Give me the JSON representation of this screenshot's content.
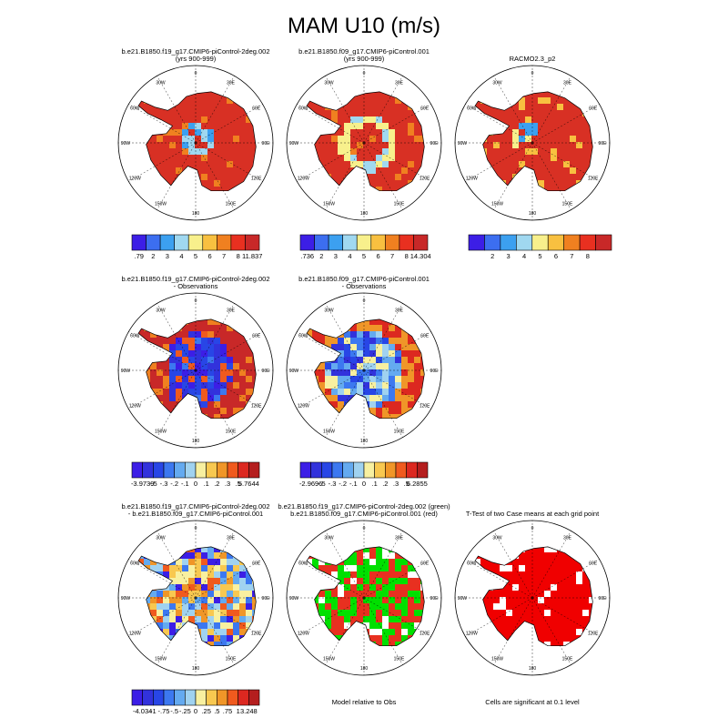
{
  "title": "MAM U10 (m/s)",
  "longitude_labels": [
    "0",
    "30E",
    "60E",
    "90E",
    "120E",
    "150E",
    "180",
    "150W",
    "120W",
    "90W",
    "60W",
    "30W"
  ],
  "panels": [
    {
      "title_lines": [
        "b.e21.B1850.f19_g17.CMIP6-piControl-2deg.002",
        "(yrs 900-999)"
      ],
      "colorbar": {
        "colors": [
          "#3c1ee6",
          "#3c6ef0",
          "#3ca0f0",
          "#a0d8f0",
          "#f8f08c",
          "#f8c040",
          "#f08020",
          "#e83020",
          "#c82828"
        ],
        "labels": [
          ".79",
          "2",
          "3",
          "4",
          "5",
          "6",
          "7",
          "8",
          "11.837"
        ]
      }
    },
    {
      "title_lines": [
        "b.e21.B1850.f09_g17.CMIP6-piControl.001",
        "(yrs 900-999)"
      ],
      "colorbar": {
        "colors": [
          "#3c1ee6",
          "#3c6ef0",
          "#3ca0f0",
          "#a0d8f0",
          "#f8f08c",
          "#f8c040",
          "#f08020",
          "#e83020",
          "#c82828"
        ],
        "labels": [
          ".736",
          "2",
          "3",
          "4",
          "5",
          "6",
          "7",
          "8",
          "14.304"
        ]
      }
    },
    {
      "title_lines": [
        "RACMO2.3_p2"
      ],
      "colorbar": {
        "colors": [
          "#3c1ee6",
          "#3c6ef0",
          "#3ca0f0",
          "#a0d8f0",
          "#f8f08c",
          "#f8c040",
          "#f08020",
          "#e83020",
          "#c82828"
        ],
        "labels": [
          "2",
          "3",
          "4",
          "5",
          "6",
          "7",
          "8"
        ]
      }
    },
    {
      "title_lines": [
        "b.e21.B1850.f19_g17.CMIP6-piControl-2deg.002",
        "- Observations"
      ],
      "colorbar": {
        "colors": [
          "#3c1ee6",
          "#3232dc",
          "#2846e6",
          "#3c78f0",
          "#64aaf0",
          "#a0d2f0",
          "#f8f0a0",
          "#f8c850",
          "#f09628",
          "#f05a1e",
          "#dc2820",
          "#b41e1e"
        ],
        "labels": [
          "-3.9739",
          "-.5",
          "-.3",
          "-.2",
          "-.1",
          "0",
          ".1",
          ".2",
          ".3",
          ".5",
          "5.7644"
        ]
      }
    },
    {
      "title_lines": [
        "b.e21.B1850.f09_g17.CMIP6-piControl.001",
        "- Observations"
      ],
      "colorbar": {
        "colors": [
          "#3c1ee6",
          "#3232dc",
          "#2846e6",
          "#3c78f0",
          "#64aaf0",
          "#a0d2f0",
          "#f8f0a0",
          "#f8c850",
          "#f09628",
          "#f05a1e",
          "#dc2820",
          "#b41e1e"
        ],
        "labels": [
          "-2.9696",
          "-.5",
          "-.3",
          "-.2",
          "-.1",
          "0",
          ".1",
          ".2",
          ".3",
          ".5",
          "6.2855"
        ]
      }
    },
    {
      "title_lines": [
        "b.e21.B1850.f19_g17.CMIP6-piControl-2deg.002",
        "- b.e21.B1850.f09_g17.CMIP6-piControl.001"
      ],
      "colorbar": {
        "colors": [
          "#3c1ee6",
          "#3232dc",
          "#2846e6",
          "#3c78f0",
          "#64aaf0",
          "#a0d2f0",
          "#f8f0a0",
          "#f8c850",
          "#f09628",
          "#f05a1e",
          "#dc2820",
          "#b41e1e"
        ],
        "labels": [
          "-4.034",
          "-1",
          "-.75",
          "-.5",
          "-.25",
          "0",
          ".25",
          ".5",
          ".75",
          "1",
          "3.248"
        ]
      }
    },
    {
      "title_lines": [
        "b.e21.B1850.f19_g17.CMIP6-piControl-2deg.002 (green)",
        "b.e21.B1850.f09_g17.CMIP6-piControl.001 (red)"
      ],
      "caption": "Model relative to Obs"
    },
    {
      "title_lines": [
        "T-Test of two Case means at each grid point"
      ],
      "caption": "Cells are significant at 0.1 level"
    }
  ]
}
